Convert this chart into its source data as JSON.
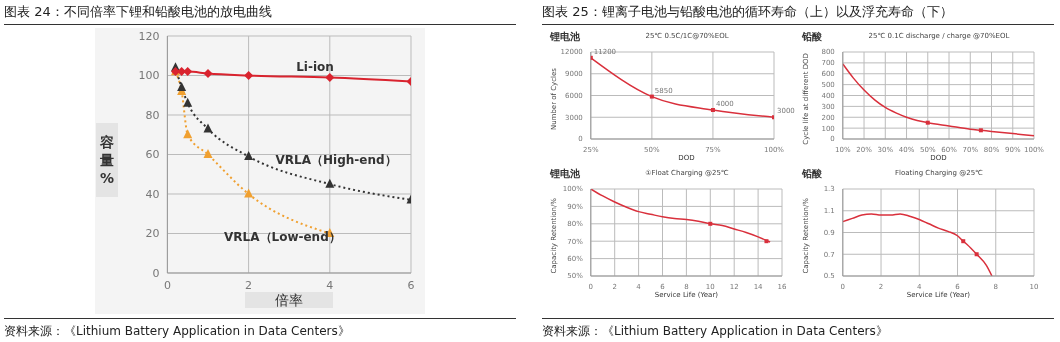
{
  "chart_data": [
    {
      "type": "line",
      "title": "图表 24：不同倍率下锂和铅酸电池的放电曲线",
      "xlabel": "倍率",
      "ylabel": "容量%",
      "xlim": [
        0,
        6
      ],
      "xticks": [
        0,
        2,
        4,
        6
      ],
      "ylim": [
        0,
        120
      ],
      "yticks": [
        0,
        20,
        40,
        60,
        80,
        100,
        120
      ],
      "grid": true,
      "annotations": [
        "资料来源：《Lithium Battery Application in Data Centers》"
      ],
      "series": [
        {
          "name": "Li-ion",
          "color": "#d9232e",
          "x": [
            0.2,
            0.35,
            0.5,
            1,
            2,
            4,
            6
          ],
          "values": [
            102,
            102,
            102,
            101,
            100,
            99,
            97
          ],
          "marker": "diamond",
          "line_style": "solid"
        },
        {
          "name": "VRLA（High-end）",
          "color": "#333333",
          "x": [
            0.2,
            0.35,
            0.5,
            1,
            2,
            4,
            6
          ],
          "values": [
            104,
            94,
            86,
            73,
            59,
            45,
            37
          ],
          "marker": "triangle",
          "line_style": "dotted"
        },
        {
          "name": "VRLA（Low-end）",
          "color": "#f0a030",
          "x": [
            0.2,
            0.35,
            0.5,
            1,
            2,
            4
          ],
          "values": [
            102,
            92,
            70,
            60,
            40,
            20
          ],
          "marker": "triangle",
          "line_style": "dotted"
        }
      ]
    },
    {
      "type": "line",
      "subtitle": "锂电池",
      "title": "25℃ 0.5C/1C@70%EOL",
      "xlabel": "DOD",
      "ylabel": "Number of Cycles",
      "xlim": [
        25,
        100
      ],
      "xticks": [
        {
          "value": 25,
          "label": "25%"
        },
        {
          "value": 50,
          "label": "50%"
        },
        {
          "value": 75,
          "label": "75%"
        },
        {
          "value": 100,
          "label": "100%"
        }
      ],
      "ylim": [
        0,
        12000
      ],
      "yticks": [
        0,
        3000,
        6000,
        9000,
        12000
      ],
      "grid": true,
      "data_labels": true,
      "annotations": [
        "图表 25：锂离子电池与铅酸电池的循环寿命（上）以及浮充寿命（下）",
        "资料来源：《Lithium Battery Application in Data Centers》"
      ],
      "series": [
        {
          "color": "#d9303c",
          "x": [
            25,
            50,
            75,
            100
          ],
          "values": [
            11200,
            5850,
            4000,
            3000
          ],
          "marker": "square",
          "line_style": "solid"
        }
      ]
    },
    {
      "type": "line",
      "subtitle": "铅酸",
      "title": "25℃ 0.1C discharge / charge @70%EOL",
      "xlabel": "DOD",
      "ylabel": "Cycle life at different DOD",
      "xlim": [
        10,
        100
      ],
      "xticks": [
        {
          "value": 10,
          "label": "10%"
        },
        {
          "value": 20,
          "label": "20%"
        },
        {
          "value": 30,
          "label": "30%"
        },
        {
          "value": 40,
          "label": "40%"
        },
        {
          "value": 50,
          "label": "50%"
        },
        {
          "value": 60,
          "label": "60%"
        },
        {
          "value": 70,
          "label": "70%"
        },
        {
          "value": 80,
          "label": "80%"
        },
        {
          "value": 90,
          "label": "90%"
        },
        {
          "value": 100,
          "label": "100%"
        }
      ],
      "ylim": [
        0,
        800
      ],
      "yticks": [
        0,
        100,
        200,
        300,
        400,
        500,
        600,
        700,
        800
      ],
      "grid": true,
      "series": [
        {
          "color": "#d9303c",
          "x": [
            10,
            15,
            20,
            25,
            30,
            35,
            40,
            45,
            50,
            60,
            70,
            75,
            80,
            90,
            100
          ],
          "values": [
            690,
            560,
            450,
            360,
            290,
            240,
            200,
            170,
            150,
            120,
            90,
            80,
            70,
            50,
            30
          ],
          "marker": "none",
          "line_style": "solid"
        },
        {
          "type": "scatter",
          "color": "#d9303c",
          "x": [
            50,
            75
          ],
          "values": [
            150,
            80
          ],
          "marker": "square"
        }
      ]
    },
    {
      "type": "line",
      "subtitle": "锂电池",
      "title": "①Float Charging @25℃",
      "xlabel": "Service Life (Year)",
      "ylabel": "Capacity Retention/%",
      "xlim": [
        0,
        16
      ],
      "xticks": [
        0,
        2,
        4,
        6,
        8,
        10,
        12,
        14,
        16
      ],
      "ylim": [
        50,
        100
      ],
      "yticks": [
        {
          "value": 50,
          "label": "50%"
        },
        {
          "value": 60,
          "label": "60%"
        },
        {
          "value": 70,
          "label": "70%"
        },
        {
          "value": 80,
          "label": "80%"
        },
        {
          "value": 90,
          "label": "90%"
        },
        {
          "value": 100,
          "label": "100%"
        }
      ],
      "grid": true,
      "series": [
        {
          "color": "#d9303c",
          "x": [
            0,
            1,
            2,
            3,
            4,
            5,
            6,
            7,
            8,
            9,
            10,
            11,
            12,
            13,
            14,
            15
          ],
          "values": [
            100,
            96,
            92.5,
            89.5,
            87,
            85.5,
            84,
            83,
            82.5,
            81.5,
            80,
            79,
            77,
            75,
            72.5,
            69.5
          ],
          "marker": "none",
          "line_style": "solid"
        },
        {
          "type": "scatter",
          "color": "#d9303c",
          "x": [
            10,
            14.7
          ],
          "values": [
            80,
            70
          ],
          "marker": "square"
        }
      ]
    },
    {
      "type": "line",
      "subtitle": "铅酸",
      "title": "Floating Charging @25℃",
      "xlabel": "Service Life (Year)",
      "ylabel": "Capacity Retention/%",
      "xlim": [
        0,
        10
      ],
      "xticks": [
        0,
        2,
        4,
        6,
        8,
        10
      ],
      "ylim": [
        0.5,
        1.3
      ],
      "yticks": [
        0.5,
        0.7,
        0.9,
        1.1,
        1.3
      ],
      "grid": true,
      "series": [
        {
          "color": "#d9303c",
          "x": [
            0,
            0.5,
            1,
            1.5,
            2,
            2.5,
            3,
            3.5,
            4,
            4.5,
            5,
            5.5,
            6,
            6.3,
            6.5,
            7,
            7.5,
            7.8
          ],
          "values": [
            1.0,
            1.03,
            1.06,
            1.07,
            1.06,
            1.06,
            1.07,
            1.05,
            1.02,
            0.98,
            0.94,
            0.91,
            0.87,
            0.82,
            0.79,
            0.7,
            0.6,
            0.5
          ],
          "marker": "none",
          "line_style": "solid"
        },
        {
          "type": "scatter",
          "color": "#d9303c",
          "x": [
            6.3,
            7
          ],
          "values": [
            0.82,
            0.7
          ],
          "marker": "square"
        }
      ]
    }
  ]
}
